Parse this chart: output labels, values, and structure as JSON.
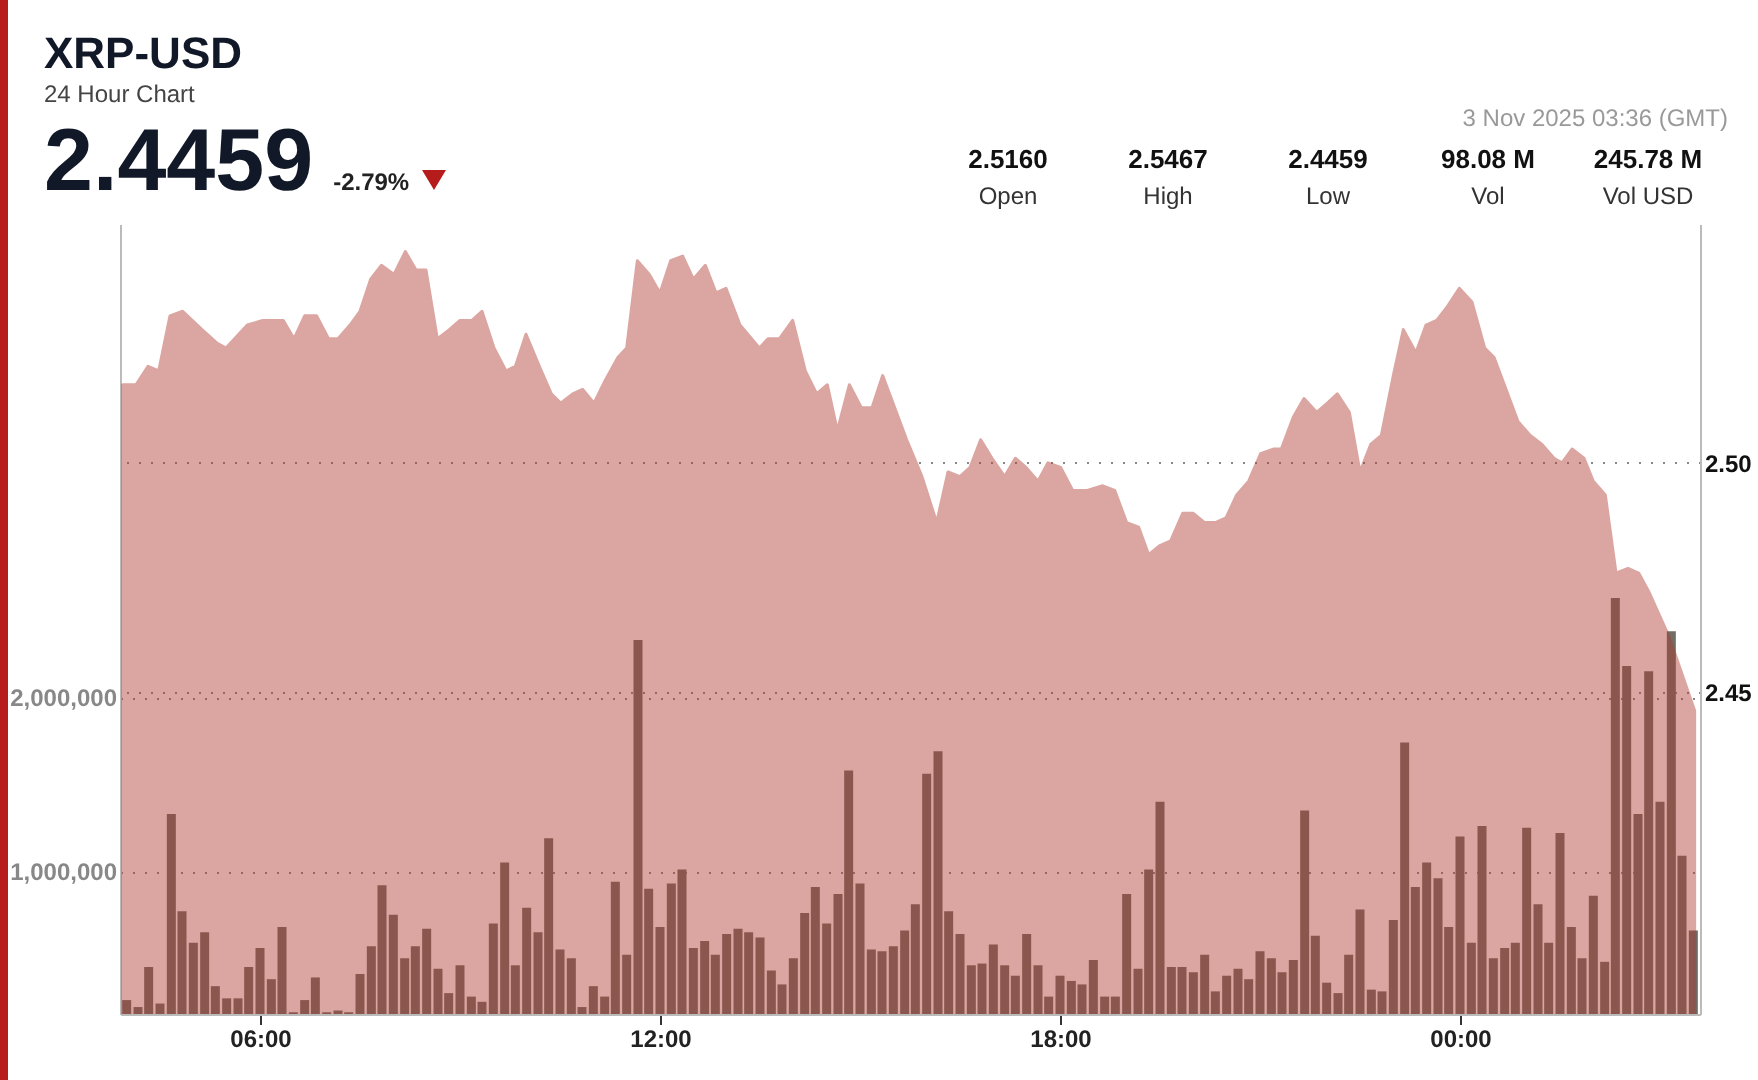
{
  "chart_data": {
    "type": "area",
    "title": "XRP-USD",
    "subtitle": "24 Hour Chart",
    "annotations": [
      "2.4459",
      "-2.79%",
      "2.5160",
      "Open",
      "2.5467",
      "High",
      "2.4459",
      "Low",
      "98.08 M",
      "Vol",
      "245.78 M",
      "Vol USD",
      "3 Nov 2025 03:36 (GMT)"
    ],
    "xlim": [
      3.9,
      27.6
    ],
    "xticks": [
      {
        "value": 6,
        "label": "06:00"
      },
      {
        "value": 12,
        "label": "12:00"
      },
      {
        "value": 18,
        "label": "18:00"
      },
      {
        "value": 24,
        "label": "00:00"
      }
    ],
    "ylim": [
      2.38,
      2.552
    ],
    "yticks": [
      {
        "value": 2.45,
        "label": "2.45"
      },
      {
        "value": 2.5,
        "label": "2.50"
      }
    ],
    "y2lim": [
      180000,
      4720000
    ],
    "y2ticks": [
      {
        "value": 1000000,
        "label": "1,000,000"
      },
      {
        "value": 2000000,
        "label": "2,000,000"
      }
    ],
    "grid": "y",
    "series": [
      {
        "color": "#b03a30",
        "x": [
          3.94,
          4.14,
          4.32,
          4.48,
          4.65,
          4.84,
          5.13,
          5.36,
          5.49,
          5.81,
          6.04,
          6.35,
          6.51,
          6.67,
          6.85,
          7.03,
          7.17,
          7.35,
          7.5,
          7.66,
          7.82,
          8.01,
          8.18,
          8.34,
          8.49,
          8.66,
          8.84,
          9.0,
          9.18,
          9.33,
          9.51,
          9.69,
          9.83,
          9.99,
          10.19,
          10.37,
          10.51,
          10.69,
          10.84,
          11.01,
          11.18,
          11.37,
          11.5,
          11.66,
          11.84,
          12.0,
          12.16,
          12.34,
          12.5,
          12.68,
          12.84,
          12.99,
          13.2,
          13.49,
          13.62,
          13.79,
          13.99,
          14.18,
          14.35,
          14.51,
          14.66,
          14.84,
          15.02,
          15.18,
          15.34,
          15.7,
          15.93,
          16.15,
          16.32,
          16.5,
          16.65,
          16.81,
          16.98,
          17.17,
          17.33,
          17.49,
          17.67,
          17.82,
          18.01,
          18.19,
          18.41,
          18.64,
          18.82,
          19.0,
          19.18,
          19.33,
          19.5,
          19.66,
          19.84,
          20.0,
          20.17,
          20.33,
          20.49,
          20.65,
          20.83,
          21.01,
          21.2,
          21.32,
          21.5,
          21.66,
          21.85,
          22.01,
          22.16,
          22.34,
          22.5,
          22.66,
          22.82,
          23.0,
          23.15,
          23.34,
          23.49,
          23.65,
          23.81,
          23.99,
          24.18,
          24.37,
          24.51,
          24.69,
          24.87,
          25.05,
          25.23,
          25.41,
          25.53,
          25.68,
          25.86,
          26.0,
          26.18,
          26.34,
          26.52,
          26.68,
          26.83,
          27.14,
          27.52
        ],
        "values": [
          2.517,
          2.517,
          2.521,
          2.52,
          2.532,
          2.533,
          2.529,
          2.526,
          2.525,
          2.53,
          2.531,
          2.531,
          2.527,
          2.532,
          2.532,
          2.527,
          2.527,
          2.53,
          2.533,
          2.54,
          2.543,
          2.541,
          2.546,
          2.542,
          2.542,
          2.527,
          2.529,
          2.531,
          2.531,
          2.533,
          2.525,
          2.52,
          2.521,
          2.528,
          2.521,
          2.515,
          2.513,
          2.515,
          2.516,
          2.513,
          2.518,
          2.523,
          2.525,
          2.544,
          2.541,
          2.537,
          2.544,
          2.545,
          2.54,
          2.543,
          2.537,
          2.538,
          2.53,
          2.525,
          2.527,
          2.527,
          2.531,
          2.52,
          2.515,
          2.517,
          2.507,
          2.517,
          2.512,
          2.512,
          2.519,
          2.505,
          2.497,
          2.487,
          2.498,
          2.497,
          2.499,
          2.505,
          2.501,
          2.497,
          2.501,
          2.499,
          2.496,
          2.5,
          2.499,
          2.494,
          2.494,
          2.495,
          2.494,
          2.487,
          2.486,
          2.48,
          2.482,
          2.483,
          2.489,
          2.489,
          2.487,
          2.487,
          2.488,
          2.493,
          2.496,
          2.502,
          2.503,
          2.503,
          2.51,
          2.514,
          2.511,
          2.513,
          2.515,
          2.511,
          2.498,
          2.504,
          2.506,
          2.519,
          2.529,
          2.524,
          2.53,
          2.531,
          2.534,
          2.538,
          2.535,
          2.525,
          2.523,
          2.516,
          2.509,
          2.506,
          2.504,
          2.501,
          2.5,
          2.503,
          2.501,
          2.496,
          2.493,
          2.476,
          2.477,
          2.476,
          2.472,
          2.462,
          2.446
        ]
      },
      {
        "type": "bar",
        "axis": "y2",
        "color": "#6e6e66",
        "x": [
          4,
          4.17,
          4.33,
          4.5,
          4.67,
          4.83,
          5,
          5.17,
          5.33,
          5.5,
          5.67,
          5.83,
          6,
          6.17,
          6.33,
          6.5,
          6.67,
          6.83,
          7,
          7.17,
          7.33,
          7.5,
          7.67,
          7.83,
          8,
          8.17,
          8.33,
          8.5,
          8.67,
          8.83,
          9,
          9.17,
          9.33,
          9.5,
          9.67,
          9.83,
          10,
          10.17,
          10.33,
          10.5,
          10.67,
          10.83,
          11,
          11.17,
          11.33,
          11.5,
          11.67,
          11.83,
          12,
          12.17,
          12.33,
          12.5,
          12.67,
          12.83,
          13,
          13.17,
          13.33,
          13.5,
          13.67,
          13.83,
          14,
          14.17,
          14.33,
          14.5,
          14.67,
          14.83,
          15,
          15.17,
          15.33,
          15.5,
          15.67,
          15.83,
          16,
          16.17,
          16.33,
          16.5,
          16.67,
          16.83,
          17,
          17.17,
          17.33,
          17.5,
          17.67,
          17.83,
          18,
          18.17,
          18.33,
          18.5,
          18.67,
          18.83,
          19,
          19.17,
          19.33,
          19.5,
          19.67,
          19.83,
          20,
          20.17,
          20.33,
          20.5,
          20.67,
          20.83,
          21,
          21.17,
          21.33,
          21.5,
          21.67,
          21.83,
          22,
          22.17,
          22.33,
          22.5,
          22.67,
          22.83,
          23,
          23.17,
          23.33,
          23.5,
          23.67,
          23.83,
          24,
          24.17,
          24.33,
          24.5,
          24.67,
          24.83,
          25,
          25.17,
          25.33,
          25.5,
          25.67,
          25.83,
          26,
          26.17,
          26.33,
          26.5,
          26.67,
          26.83,
          27,
          27.17,
          27.33,
          27.5
        ],
        "values": [
          260000,
          220000,
          450000,
          240000,
          1330000,
          770000,
          590000,
          650000,
          340000,
          270000,
          270000,
          450000,
          560000,
          380000,
          680000,
          190000,
          260000,
          390000,
          190000,
          200000,
          190000,
          410000,
          570000,
          920000,
          750000,
          500000,
          570000,
          670000,
          440000,
          300000,
          460000,
          280000,
          250000,
          700000,
          1050000,
          460000,
          790000,
          650000,
          1190000,
          550000,
          500000,
          220000,
          340000,
          280000,
          940000,
          520000,
          2330000,
          900000,
          680000,
          930000,
          1010000,
          560000,
          600000,
          520000,
          640000,
          670000,
          650000,
          620000,
          430000,
          350000,
          500000,
          760000,
          910000,
          700000,
          870000,
          1580000,
          930000,
          550000,
          540000,
          570000,
          660000,
          810000,
          1560000,
          1690000,
          770000,
          640000,
          460000,
          470000,
          580000,
          460000,
          400000,
          640000,
          460000,
          280000,
          400000,
          370000,
          350000,
          490000,
          280000,
          280000,
          870000,
          440000,
          1010000,
          1400000,
          450000,
          450000,
          420000,
          520000,
          310000,
          400000,
          440000,
          380000,
          540000,
          500000,
          420000,
          490000,
          1350000,
          630000,
          360000,
          300000,
          520000,
          780000,
          320000,
          310000,
          720000,
          1740000,
          910000,
          1050000,
          960000,
          680000,
          1200000,
          590000,
          1260000,
          500000,
          560000,
          590000,
          1250000,
          810000,
          590000,
          1220000,
          680000,
          500000,
          860000,
          480000,
          2570000,
          2180000,
          1330000,
          2150000,
          1400000,
          2380000,
          1090000,
          660000
        ]
      }
    ]
  }
}
